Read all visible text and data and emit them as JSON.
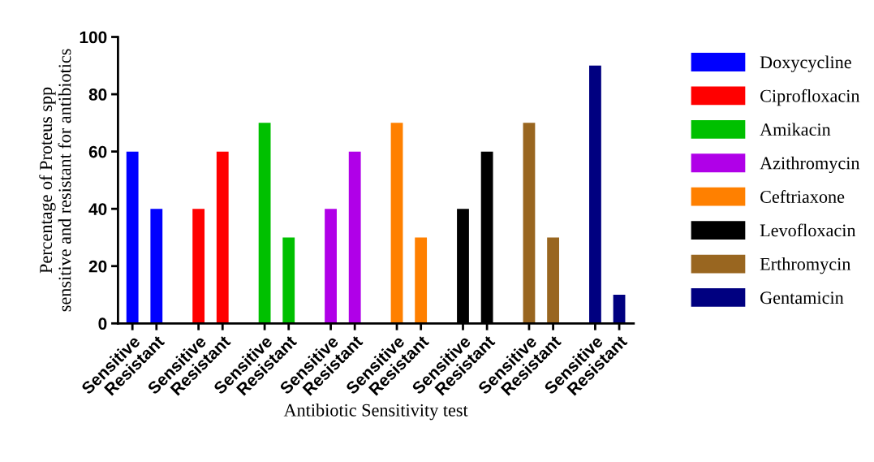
{
  "chart_data": {
    "type": "bar",
    "xlabel": "Antibiotic Sensitivity test",
    "ylabel": "Percentage of Proteus spp\nsensitive and resistant for antibiotics",
    "categories": [
      "Sensitive",
      "Resistant",
      "Sensitive",
      "Resistant",
      "Sensitive",
      "Resistant",
      "Sensitive",
      "Resistant",
      "Sensitive",
      "Resistant",
      "Sensitive",
      "Resistant",
      "Sensitive",
      "Resistant",
      "Sensitive",
      "Resistant"
    ],
    "series": [
      {
        "name": "Doxycycline",
        "color": "#0000ff",
        "values": [
          60,
          40,
          null,
          null,
          null,
          null,
          null,
          null,
          null,
          null,
          null,
          null,
          null,
          null,
          null,
          null
        ]
      },
      {
        "name": "Ciprofloxacin",
        "color": "#ff0000",
        "values": [
          null,
          null,
          40,
          60,
          null,
          null,
          null,
          null,
          null,
          null,
          null,
          null,
          null,
          null,
          null,
          null
        ]
      },
      {
        "name": "Amikacin",
        "color": "#00c000",
        "values": [
          null,
          null,
          null,
          null,
          70,
          30,
          null,
          null,
          null,
          null,
          null,
          null,
          null,
          null,
          null,
          null
        ]
      },
      {
        "name": "Azithromycin",
        "color": "#b000e8",
        "values": [
          null,
          null,
          null,
          null,
          null,
          null,
          40,
          60,
          null,
          null,
          null,
          null,
          null,
          null,
          null,
          null
        ]
      },
      {
        "name": "Ceftriaxone",
        "color": "#ff8000",
        "values": [
          null,
          null,
          null,
          null,
          null,
          null,
          null,
          null,
          70,
          30,
          null,
          null,
          null,
          null,
          null,
          null
        ]
      },
      {
        "name": "Levofloxacin",
        "color": "#000000",
        "values": [
          null,
          null,
          null,
          null,
          null,
          null,
          null,
          null,
          null,
          null,
          40,
          60,
          null,
          null,
          null,
          null
        ]
      },
      {
        "name": "Erthromycin",
        "color": "#996620",
        "values": [
          null,
          null,
          null,
          null,
          null,
          null,
          null,
          null,
          null,
          null,
          null,
          null,
          70,
          30,
          null,
          null
        ]
      },
      {
        "name": "Gentamicin",
        "color": "#000080",
        "values": [
          null,
          null,
          null,
          null,
          null,
          null,
          null,
          null,
          null,
          null,
          null,
          null,
          null,
          null,
          90,
          10
        ]
      }
    ],
    "ylim": [
      0,
      100
    ],
    "yticks": [
      0,
      20,
      40,
      60,
      80,
      100
    ],
    "grid": false,
    "legend": "right"
  }
}
